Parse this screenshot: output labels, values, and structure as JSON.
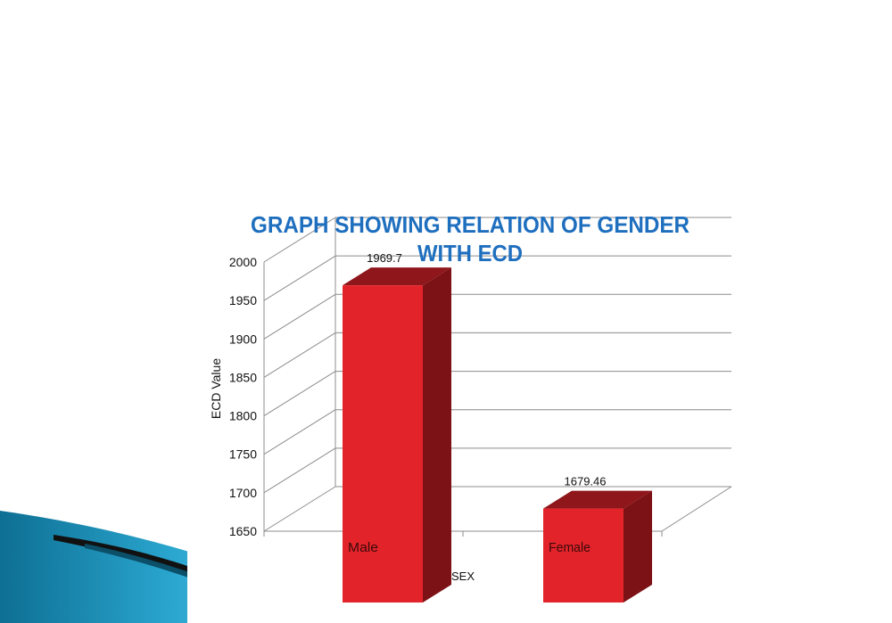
{
  "chart_data": {
    "type": "bar",
    "title_lines": [
      "GRAPH SHOWING RELATION OF GENDER",
      "WITH ECD"
    ],
    "xlabel": "SEX",
    "ylabel": "ECD Value",
    "categories": [
      "Male",
      "Female"
    ],
    "values": [
      1969.7,
      1679.46
    ],
    "value_labels": [
      "1969.7",
      "1679.46"
    ],
    "ylim": [
      1650,
      2000
    ],
    "yticks": [
      "1650",
      "1700",
      "1750",
      "1800",
      "1850",
      "1900",
      "1950",
      "2000"
    ],
    "grid": true,
    "style": "3d-column"
  },
  "colors": {
    "bar_front": "#e3232a",
    "bar_side": "#7c1216",
    "bar_top": "#8f161b",
    "title": "#1f6fbf",
    "grid": "#8c8c8c",
    "slide_accent": "#1b8fb6"
  }
}
